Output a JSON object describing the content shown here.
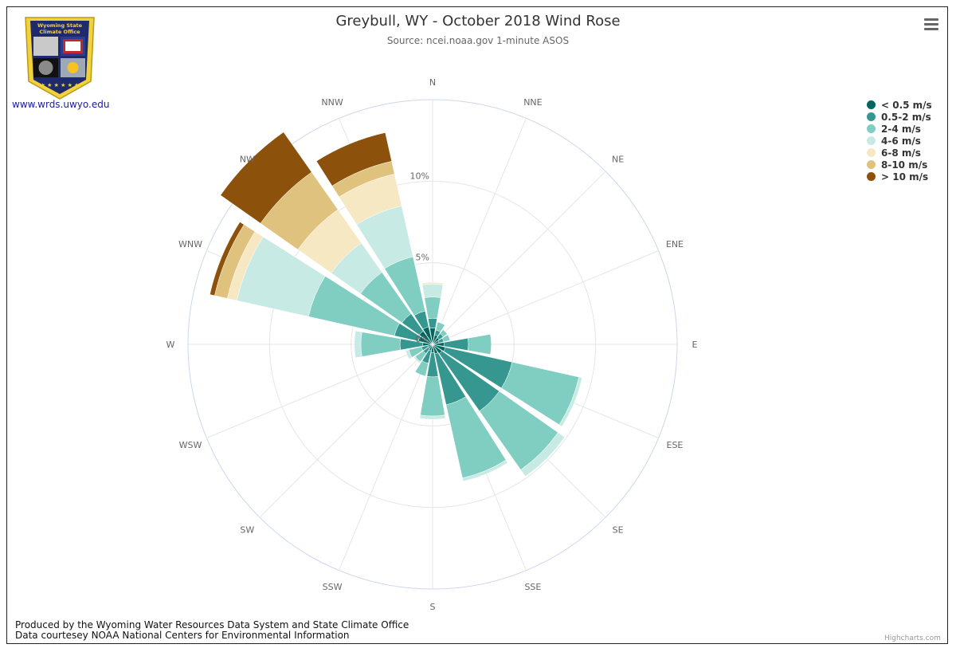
{
  "header": {
    "title": "Greybull, WY - October 2018 Wind Rose",
    "subtitle": "Source: ncei.noaa.gov 1-minute ASOS"
  },
  "logo": {
    "line1": "Wyoming State",
    "line2": "Climate Office"
  },
  "site_link": "www.wrds.uwyo.edu",
  "footer": {
    "line1": "Produced by the Wyoming Water Resources Data System and State Climate Office",
    "line2": "Data courtesey NOAA National Centers for Environmental Information"
  },
  "credits": "Highcharts.com",
  "menu_icon": "hamburger-menu-icon",
  "chart_data": {
    "type": "bar",
    "subtype": "windrose-stacked-polar",
    "title": "Greybull, WY - October 2018 Wind Rose",
    "subtitle": "Source: ncei.noaa.gov 1-minute ASOS",
    "categories": [
      "N",
      "NNE",
      "NE",
      "ENE",
      "E",
      "ESE",
      "SE",
      "SSE",
      "S",
      "SSW",
      "SW",
      "WSW",
      "W",
      "WNW",
      "NW",
      "NNW"
    ],
    "radial_axis": {
      "min": 0,
      "max": 15,
      "tick_labels": [
        "0%",
        "5%",
        "10%"
      ],
      "tick_values": [
        0,
        5,
        10
      ]
    },
    "grid": true,
    "legend": "top-right",
    "series": [
      {
        "name": "< 0.5 m/s",
        "color": "#01665e",
        "values": [
          1.0,
          0.6,
          0.5,
          0.4,
          0.7,
          0.8,
          0.7,
          0.6,
          0.5,
          0.4,
          0.3,
          0.3,
          0.6,
          0.9,
          1.0,
          1.1
        ]
      },
      {
        "name": "0.5-2 m/s",
        "color": "#35978f",
        "values": [
          0.6,
          0.3,
          0.3,
          0.3,
          1.5,
          4.2,
          4.3,
          3.2,
          1.5,
          0.8,
          0.4,
          0.4,
          1.4,
          1.5,
          1.3,
          1.0
        ]
      },
      {
        "name": "2-4 m/s",
        "color": "#80cdc1",
        "values": [
          1.3,
          0.5,
          0.3,
          0.4,
          1.4,
          4.2,
          4.4,
          4.6,
          2.4,
          0.8,
          0.6,
          0.8,
          2.4,
          5.4,
          3.1,
          3.4
        ]
      },
      {
        "name": "4-6 m/s",
        "color": "#c7eae5",
        "values": [
          0.8,
          0.0,
          0.0,
          0.0,
          0.0,
          0.2,
          0.5,
          0.2,
          0.2,
          0.0,
          0.1,
          0.2,
          0.4,
          4.5,
          2.2,
          3.2
        ]
      },
      {
        "name": "6-8 m/s",
        "color": "#f6e8c3",
        "values": [
          0.1,
          0.0,
          0.0,
          0.0,
          0.0,
          0.0,
          0.0,
          0.0,
          0.0,
          0.0,
          0.0,
          0.0,
          0.0,
          0.6,
          2.5,
          2.0
        ]
      },
      {
        "name": "8-10 m/s",
        "color": "#dfc27d",
        "values": [
          0.0,
          0.0,
          0.0,
          0.0,
          0.0,
          0.0,
          0.0,
          0.0,
          0.0,
          0.0,
          0.0,
          0.0,
          0.0,
          0.8,
          2.8,
          0.8
        ]
      },
      {
        "name": "> 10 m/s",
        "color": "#8c510a",
        "values": [
          0.0,
          0.0,
          0.0,
          0.0,
          0.0,
          0.0,
          0.0,
          0.0,
          0.0,
          0.0,
          0.0,
          0.0,
          0.0,
          0.3,
          3.0,
          1.8
        ]
      }
    ]
  }
}
